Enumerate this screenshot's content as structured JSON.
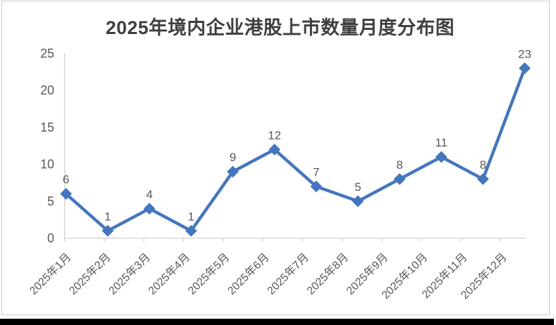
{
  "chart_data": {
    "type": "line",
    "title": "2025年境内企业港股上市数量月度分布图",
    "categories": [
      "2025年1月",
      "2025年2月",
      "2025年3月",
      "2025年4月",
      "2025年5月",
      "2025年6月",
      "2025年7月",
      "2025年8月",
      "2025年9月",
      "2025年10月",
      "2025年11月",
      "2025年12月"
    ],
    "values": [
      6,
      1,
      4,
      1,
      9,
      12,
      7,
      5,
      8,
      11,
      8,
      23
    ],
    "data_labels": [
      "6",
      "1",
      "4",
      "1",
      "9",
      "12",
      "7",
      "5",
      "8",
      "11",
      "8",
      "23"
    ],
    "xlabel": "",
    "ylabel": "",
    "ylim": [
      0,
      25
    ],
    "yticks": [
      0,
      5,
      10,
      15,
      20,
      25
    ],
    "grid": false,
    "legend_position": "none",
    "marker": "diamond",
    "data_label_position": "above",
    "colors": {
      "line": "#4576bd",
      "marker": "#4576bd",
      "labels": "#595959",
      "axis": "#d9d9d9",
      "title": "#3f3f3f",
      "figure_border": "#c9c9c9",
      "bottom_edge": "#000000"
    }
  }
}
